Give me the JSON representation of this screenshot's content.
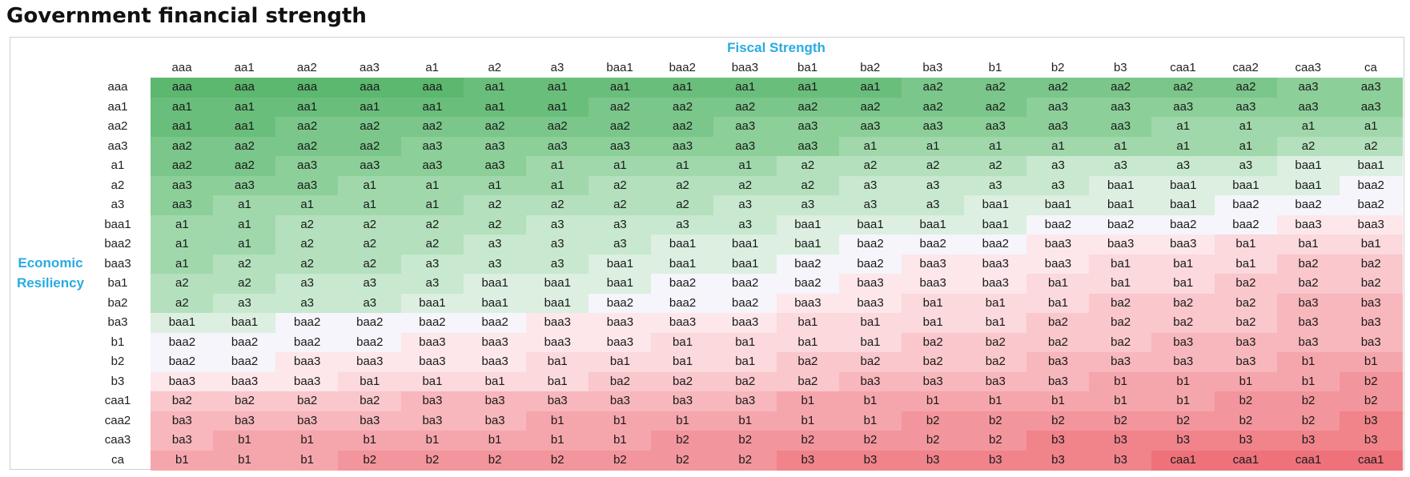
{
  "title": "Government financial strength",
  "chart_data": {
    "type": "heatmap",
    "title": "Government financial strength",
    "xlabel": "Fiscal Strength",
    "ylabel": "Economic Resiliency",
    "columns": [
      "aaa",
      "aa1",
      "aa2",
      "aa3",
      "a1",
      "a2",
      "a3",
      "baa1",
      "baa2",
      "baa3",
      "ba1",
      "ba2",
      "ba3",
      "b1",
      "b2",
      "b3",
      "caa1",
      "caa2",
      "caa3",
      "ca"
    ],
    "rows": [
      "aaa",
      "aa1",
      "aa2",
      "aa3",
      "a1",
      "a2",
      "a3",
      "baa1",
      "baa2",
      "baa3",
      "ba1",
      "ba2",
      "ba3",
      "b1",
      "b2",
      "b3",
      "caa1",
      "caa2",
      "caa3",
      "ca"
    ],
    "cells": [
      [
        "aaa",
        "aaa",
        "aaa",
        "aaa",
        "aaa",
        "aa1",
        "aa1",
        "aa1",
        "aa1",
        "aa1",
        "aa1",
        "aa1",
        "aa2",
        "aa2",
        "aa2",
        "aa2",
        "aa2",
        "aa2",
        "aa3",
        "aa3"
      ],
      [
        "aa1",
        "aa1",
        "aa1",
        "aa1",
        "aa1",
        "aa1",
        "aa1",
        "aa2",
        "aa2",
        "aa2",
        "aa2",
        "aa2",
        "aa2",
        "aa2",
        "aa3",
        "aa3",
        "aa3",
        "aa3",
        "aa3",
        "aa3"
      ],
      [
        "aa1",
        "aa1",
        "aa2",
        "aa2",
        "aa2",
        "aa2",
        "aa2",
        "aa2",
        "aa2",
        "aa3",
        "aa3",
        "aa3",
        "aa3",
        "aa3",
        "aa3",
        "aa3",
        "a1",
        "a1",
        "a1",
        "a1"
      ],
      [
        "aa2",
        "aa2",
        "aa2",
        "aa2",
        "aa3",
        "aa3",
        "aa3",
        "aa3",
        "aa3",
        "aa3",
        "aa3",
        "a1",
        "a1",
        "a1",
        "a1",
        "a1",
        "a1",
        "a1",
        "a2",
        "a2"
      ],
      [
        "aa2",
        "aa2",
        "aa3",
        "aa3",
        "aa3",
        "aa3",
        "a1",
        "a1",
        "a1",
        "a1",
        "a2",
        "a2",
        "a2",
        "a2",
        "a3",
        "a3",
        "a3",
        "a3",
        "baa1",
        "baa1"
      ],
      [
        "aa3",
        "aa3",
        "aa3",
        "a1",
        "a1",
        "a1",
        "a1",
        "a2",
        "a2",
        "a2",
        "a2",
        "a3",
        "a3",
        "a3",
        "a3",
        "baa1",
        "baa1",
        "baa1",
        "baa1",
        "baa2"
      ],
      [
        "aa3",
        "a1",
        "a1",
        "a1",
        "a1",
        "a2",
        "a2",
        "a2",
        "a2",
        "a3",
        "a3",
        "a3",
        "a3",
        "baa1",
        "baa1",
        "baa1",
        "baa1",
        "baa2",
        "baa2",
        "baa2"
      ],
      [
        "a1",
        "a1",
        "a2",
        "a2",
        "a2",
        "a2",
        "a3",
        "a3",
        "a3",
        "a3",
        "baa1",
        "baa1",
        "baa1",
        "baa1",
        "baa2",
        "baa2",
        "baa2",
        "baa2",
        "baa3",
        "baa3"
      ],
      [
        "a1",
        "a1",
        "a2",
        "a2",
        "a2",
        "a3",
        "a3",
        "a3",
        "baa1",
        "baa1",
        "baa1",
        "baa2",
        "baa2",
        "baa2",
        "baa3",
        "baa3",
        "baa3",
        "ba1",
        "ba1",
        "ba1"
      ],
      [
        "a1",
        "a2",
        "a2",
        "a2",
        "a3",
        "a3",
        "a3",
        "baa1",
        "baa1",
        "baa1",
        "baa2",
        "baa2",
        "baa3",
        "baa3",
        "baa3",
        "ba1",
        "ba1",
        "ba1",
        "ba2",
        "ba2"
      ],
      [
        "a2",
        "a2",
        "a3",
        "a3",
        "a3",
        "baa1",
        "baa1",
        "baa1",
        "baa2",
        "baa2",
        "baa2",
        "baa3",
        "baa3",
        "baa3",
        "ba1",
        "ba1",
        "ba1",
        "ba2",
        "ba2",
        "ba2"
      ],
      [
        "a2",
        "a3",
        "a3",
        "a3",
        "baa1",
        "baa1",
        "baa1",
        "baa2",
        "baa2",
        "baa2",
        "baa3",
        "baa3",
        "ba1",
        "ba1",
        "ba1",
        "ba2",
        "ba2",
        "ba2",
        "ba3",
        "ba3"
      ],
      [
        "baa1",
        "baa1",
        "baa2",
        "baa2",
        "baa2",
        "baa2",
        "baa3",
        "baa3",
        "baa3",
        "baa3",
        "ba1",
        "ba1",
        "ba1",
        "ba1",
        "ba2",
        "ba2",
        "ba2",
        "ba2",
        "ba3",
        "ba3"
      ],
      [
        "baa2",
        "baa2",
        "baa2",
        "baa2",
        "baa3",
        "baa3",
        "baa3",
        "baa3",
        "ba1",
        "ba1",
        "ba1",
        "ba1",
        "ba2",
        "ba2",
        "ba2",
        "ba2",
        "ba3",
        "ba3",
        "ba3",
        "ba3"
      ],
      [
        "baa2",
        "baa2",
        "baa3",
        "baa3",
        "baa3",
        "baa3",
        "ba1",
        "ba1",
        "ba1",
        "ba1",
        "ba2",
        "ba2",
        "ba2",
        "ba2",
        "ba3",
        "ba3",
        "ba3",
        "ba3",
        "b1",
        "b1"
      ],
      [
        "baa3",
        "baa3",
        "baa3",
        "ba1",
        "ba1",
        "ba1",
        "ba1",
        "ba2",
        "ba2",
        "ba2",
        "ba2",
        "ba3",
        "ba3",
        "ba3",
        "ba3",
        "b1",
        "b1",
        "b1",
        "b1",
        "b2"
      ],
      [
        "ba2",
        "ba2",
        "ba2",
        "ba2",
        "ba3",
        "ba3",
        "ba3",
        "ba3",
        "ba3",
        "ba3",
        "b1",
        "b1",
        "b1",
        "b1",
        "b1",
        "b1",
        "b1",
        "b2",
        "b2",
        "b2"
      ],
      [
        "ba3",
        "ba3",
        "ba3",
        "ba3",
        "ba3",
        "ba3",
        "b1",
        "b1",
        "b1",
        "b1",
        "b1",
        "b1",
        "b2",
        "b2",
        "b2",
        "b2",
        "b2",
        "b2",
        "b2",
        "b3"
      ],
      [
        "ba3",
        "b1",
        "b1",
        "b1",
        "b1",
        "b1",
        "b1",
        "b1",
        "b2",
        "b2",
        "b2",
        "b2",
        "b2",
        "b2",
        "b3",
        "b3",
        "b3",
        "b3",
        "b3",
        "b3"
      ],
      [
        "b1",
        "b1",
        "b1",
        "b2",
        "b2",
        "b2",
        "b2",
        "b2",
        "b2",
        "b2",
        "b3",
        "b3",
        "b3",
        "b3",
        "b3",
        "b3",
        "caa1",
        "caa1",
        "caa1",
        "caa1"
      ]
    ],
    "color_scale": [
      {
        "rating": "aaa",
        "color": "#5cb76f"
      },
      {
        "rating": "aa1",
        "color": "#6abe7b"
      },
      {
        "rating": "aa2",
        "color": "#7bc68a"
      },
      {
        "rating": "aa3",
        "color": "#8ccf99"
      },
      {
        "rating": "a1",
        "color": "#a0d8ab"
      },
      {
        "rating": "a2",
        "color": "#b4e0bd"
      },
      {
        "rating": "a3",
        "color": "#c8e8cf"
      },
      {
        "rating": "baa1",
        "color": "#dcefe1"
      },
      {
        "rating": "baa2",
        "color": "#f5f5fb"
      },
      {
        "rating": "baa3",
        "color": "#fde7ea"
      },
      {
        "rating": "ba1",
        "color": "#fbd9dd"
      },
      {
        "rating": "ba2",
        "color": "#f9c7cc"
      },
      {
        "rating": "ba3",
        "color": "#f7b7bc"
      },
      {
        "rating": "b1",
        "color": "#f5a6ac"
      },
      {
        "rating": "b2",
        "color": "#f3959c"
      },
      {
        "rating": "b3",
        "color": "#f1838b"
      },
      {
        "rating": "caa1",
        "color": "#ef727b"
      }
    ]
  }
}
